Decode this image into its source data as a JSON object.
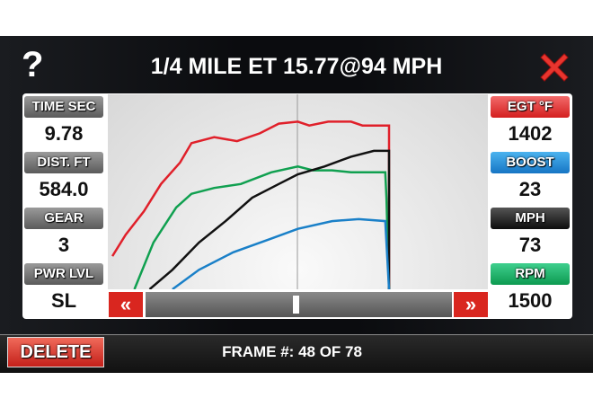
{
  "header": {
    "help_label": "?",
    "title": "1/4 MILE ET 15.77@94 MPH",
    "close_icon": "red-x-icon"
  },
  "left_gauges": [
    {
      "label": "TIME SEC",
      "value": "9.78",
      "color": "#7a7a7a"
    },
    {
      "label": "DIST. FT",
      "value": "584.0",
      "color": "#7a7a7a"
    },
    {
      "label": "GEAR",
      "value": "3",
      "color": "#7a7a7a"
    },
    {
      "label": "PWR LVL",
      "value": "SL",
      "color": "#7a7a7a"
    }
  ],
  "right_gauges": [
    {
      "label": "EGT °F",
      "value": "1402",
      "color": "#e03030"
    },
    {
      "label": "BOOST",
      "value": "23",
      "color": "#2090dd"
    },
    {
      "label": "MPH",
      "value": "73",
      "color": "#111111"
    },
    {
      "label": "RPM",
      "value": "1500",
      "color": "#14a85a"
    }
  ],
  "chart_data": {
    "type": "line",
    "grid": "single vertical cursor line at midpoint",
    "series": [
      {
        "color": "#e0202a",
        "points": [
          [
            1.2,
            17
          ],
          [
            4.7,
            28
          ],
          [
            9.5,
            40
          ],
          [
            14,
            54
          ],
          [
            19,
            65
          ],
          [
            22,
            75
          ],
          [
            28,
            78
          ],
          [
            34,
            76
          ],
          [
            40,
            80
          ],
          [
            45,
            85
          ],
          [
            50,
            86
          ],
          [
            53,
            84
          ],
          [
            58,
            86
          ],
          [
            64,
            86
          ],
          [
            67,
            84
          ],
          [
            74,
            84
          ],
          [
            74,
            0
          ]
        ]
      },
      {
        "color": "#10a050",
        "points": [
          [
            7,
            0
          ],
          [
            12,
            24
          ],
          [
            18,
            42
          ],
          [
            22,
            49
          ],
          [
            28,
            52
          ],
          [
            35,
            54
          ],
          [
            43,
            60
          ],
          [
            50,
            63
          ],
          [
            54,
            61
          ],
          [
            59,
            61
          ],
          [
            64,
            60
          ],
          [
            73,
            60
          ],
          [
            73.3,
            47
          ],
          [
            74,
            0
          ]
        ]
      },
      {
        "color": "#111111",
        "points": [
          [
            11,
            0
          ],
          [
            17,
            10
          ],
          [
            24,
            24
          ],
          [
            31,
            35
          ],
          [
            38,
            47
          ],
          [
            45,
            54
          ],
          [
            50,
            59
          ],
          [
            57,
            63
          ],
          [
            64,
            68
          ],
          [
            70,
            71
          ],
          [
            74,
            71
          ],
          [
            74,
            0
          ]
        ]
      },
      {
        "color": "#1a80c8",
        "points": [
          [
            17,
            0
          ],
          [
            24,
            10
          ],
          [
            33,
            19
          ],
          [
            43,
            26
          ],
          [
            50,
            31
          ],
          [
            59,
            35
          ],
          [
            66,
            36
          ],
          [
            73,
            35
          ],
          [
            74,
            0
          ]
        ]
      }
    ]
  },
  "scrubber": {
    "prev_label": "«",
    "next_label": "»",
    "position": 0.49
  },
  "footer": {
    "delete_label": "DELETE",
    "frame_label": "FRAME #: 48 OF 78"
  }
}
